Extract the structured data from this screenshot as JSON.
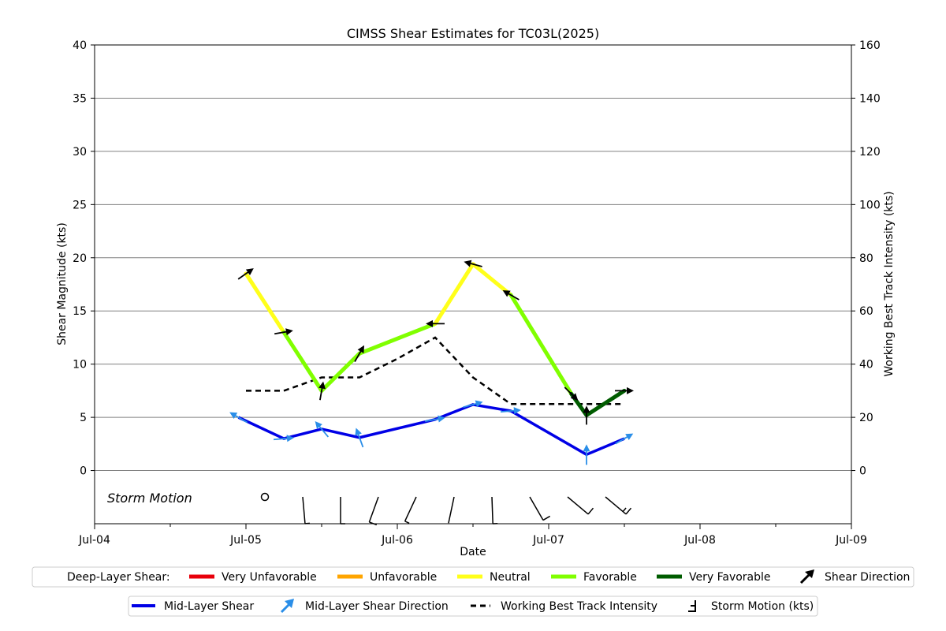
{
  "chart_data": {
    "type": "line",
    "title": "CIMSS Shear Estimates for TC03L(2025)",
    "xlabel": "Date",
    "ylabel": "Shear Magnitude (kts)",
    "y2label": "Working Best Track Intensity (kts)",
    "x_ticks": [
      "Jul-04",
      "Jul-05",
      "Jul-06",
      "Jul-07",
      "Jul-08",
      "Jul-09"
    ],
    "xlim_days": [
      0,
      5
    ],
    "ylim": [
      -5,
      40
    ],
    "y_ticks": [
      0,
      5,
      10,
      15,
      20,
      25,
      30,
      35,
      40
    ],
    "y2lim": [
      -20,
      160
    ],
    "y2_ticks": [
      0,
      20,
      40,
      60,
      80,
      100,
      120,
      140,
      160
    ],
    "grid": "horizontal",
    "storm_motion_label": "Storm Motion",
    "deep_layer_shear": {
      "x_days": [
        1.0,
        1.25,
        1.5,
        1.75,
        2.25,
        2.5,
        2.75,
        3.15,
        3.25,
        3.5
      ],
      "values": [
        18.5,
        13.0,
        7.5,
        11.0,
        13.8,
        19.4,
        16.5,
        7.2,
        5.2,
        7.5
      ],
      "segment_colors": [
        "#ffff1a",
        "#80ff00",
        "#80ff00",
        "#80ff00",
        "#ffff1a",
        "#ffff1a",
        "#80ff00",
        "#005c00",
        "#005c00"
      ],
      "directions_deg": [
        35,
        10,
        80,
        60,
        180,
        165,
        150,
        315,
        90,
        0
      ]
    },
    "mid_layer_shear": {
      "x_days": [
        0.95,
        1.25,
        1.5,
        1.75,
        2.25,
        2.5,
        2.75,
        3.25,
        3.5
      ],
      "values": [
        5.0,
        3.0,
        3.9,
        3.1,
        4.8,
        6.2,
        5.6,
        1.5,
        3.0
      ],
      "directions_deg": [
        150,
        5,
        130,
        110,
        10,
        15,
        5,
        90,
        30
      ]
    },
    "best_track_intensity": {
      "x_days": [
        1.0,
        1.25,
        1.5,
        1.75,
        2.0,
        2.25,
        2.5,
        2.75,
        3.0,
        3.25,
        3.5
      ],
      "values": [
        30,
        30,
        35,
        35,
        42,
        50,
        35,
        25,
        25,
        25,
        25
      ]
    },
    "storm_motion": [
      {
        "x_days": 1.125,
        "calm": true
      },
      {
        "x_days": 1.375,
        "dir_deg": 95,
        "speed": 5
      },
      {
        "x_days": 1.625,
        "dir_deg": 90,
        "speed": 5
      },
      {
        "x_days": 1.875,
        "dir_deg": 70,
        "speed": 10
      },
      {
        "x_days": 2.125,
        "dir_deg": 65,
        "speed": 5
      },
      {
        "x_days": 2.375,
        "dir_deg": 78,
        "speed": 0
      },
      {
        "x_days": 2.625,
        "dir_deg": 92,
        "speed": 5
      },
      {
        "x_days": 2.875,
        "dir_deg": 120,
        "speed": 10
      },
      {
        "x_days": 3.125,
        "dir_deg": 140,
        "speed": 10
      },
      {
        "x_days": 3.375,
        "dir_deg": 140,
        "speed": 15
      }
    ]
  },
  "legend1": {
    "title": "Deep-Layer Shear:",
    "items": [
      {
        "label": "Very Unfavorable",
        "color": "#e8000b"
      },
      {
        "label": "Unfavorable",
        "color": "#ffa500"
      },
      {
        "label": "Neutral",
        "color": "#ffff1a"
      },
      {
        "label": "Favorable",
        "color": "#80ff00"
      },
      {
        "label": "Very Favorable",
        "color": "#005c00"
      }
    ],
    "direction_label": "Shear Direction"
  },
  "legend2": {
    "mid_shear_label": "Mid-Layer Shear",
    "mid_dir_label": "Mid-Layer Shear Direction",
    "intensity_label": "Working Best Track Intensity",
    "motion_label": "Storm Motion (kts)",
    "mid_color": "#0000e6",
    "mid_arrow_color": "#2a8ee8"
  }
}
